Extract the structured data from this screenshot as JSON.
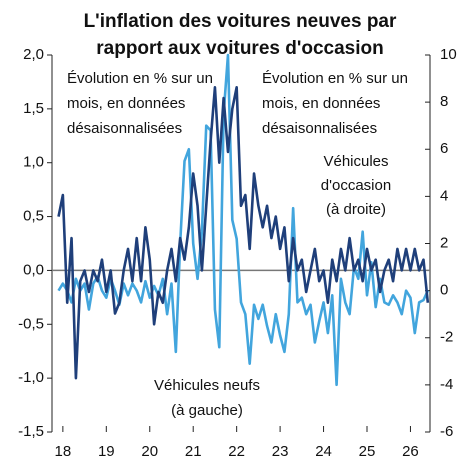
{
  "chart_data": {
    "type": "line",
    "title": [
      "L'inflation des voitures neuves par",
      "rapport aux voitures d'occasion"
    ],
    "annotations": [
      {
        "lines": [
          "Évolution en % sur un",
          "mois, en données",
          "désaisonnalisées"
        ]
      },
      {
        "lines": [
          "Évolution en % sur un",
          "mois, en données",
          "désaisonnalisées"
        ]
      },
      {
        "lines": [
          "Véhicules",
          "d'occasion",
          "(à droite)"
        ]
      },
      {
        "lines": [
          "Véhicules neufs",
          "(à gauche)"
        ]
      }
    ],
    "x": [
      17.9,
      18.0,
      18.1,
      18.2,
      18.3,
      18.4,
      18.5,
      18.6,
      18.7,
      18.8,
      18.9,
      19.0,
      19.1,
      19.2,
      19.3,
      19.4,
      19.5,
      19.6,
      19.7,
      19.8,
      19.9,
      20.0,
      20.1,
      20.2,
      20.3,
      20.4,
      20.5,
      20.6,
      20.7,
      20.8,
      20.9,
      21.0,
      21.1,
      21.2,
      21.3,
      21.4,
      21.5,
      21.6,
      21.7,
      21.8,
      21.9,
      22.0,
      22.1,
      22.2,
      22.3,
      22.4,
      22.5,
      22.6,
      22.7,
      22.8,
      22.9,
      23.0,
      23.1,
      23.2,
      23.3,
      23.4,
      23.5,
      23.6,
      23.7,
      23.8,
      23.9,
      24.0,
      24.1,
      24.2,
      24.3,
      24.4,
      24.5,
      24.6,
      24.7,
      24.8,
      24.9,
      25.0,
      25.1,
      25.2,
      25.3,
      25.4,
      25.5,
      25.6,
      25.7,
      25.8,
      25.9,
      26.0,
      26.1,
      26.2,
      26.3,
      26.4
    ],
    "series": [
      {
        "name": "Véhicules neufs",
        "color": "#1f3f7a",
        "axis": "y",
        "values": [
          0.5,
          0.7,
          -0.3,
          0.3,
          -1.0,
          -0.1,
          0.0,
          -0.2,
          0.0,
          -0.1,
          0.1,
          -0.2,
          0.0,
          -0.4,
          -0.3,
          0.0,
          0.2,
          -0.1,
          0.3,
          -0.1,
          0.4,
          0.1,
          -0.5,
          -0.2,
          -0.3,
          0.0,
          0.2,
          -0.1,
          0.3,
          0.1,
          0.4,
          0.9,
          0.6,
          0.0,
          0.6,
          1.2,
          1.7,
          1.0,
          1.6,
          1.1,
          1.5,
          1.7,
          0.6,
          0.7,
          0.2,
          0.9,
          0.6,
          0.4,
          0.6,
          0.3,
          0.5,
          0.2,
          0.4,
          -0.1,
          0.3,
          0.0,
          0.1,
          -0.2,
          0.0,
          0.2,
          -0.1,
          0.0,
          -0.3,
          0.1,
          -0.1,
          0.2,
          0.0,
          0.3,
          0.0,
          0.1,
          -0.1,
          0.2,
          0.0,
          0.1,
          -0.2,
          0.0,
          0.1,
          -0.1,
          0.2,
          0.0,
          0.2,
          0.0,
          0.2,
          0.0,
          0.1,
          -0.3
        ]
      },
      {
        "name": "Véhicules d'occasion",
        "color": "#42a5dd",
        "axis": "y2",
        "values": [
          0.0,
          0.3,
          0.0,
          -0.5,
          0.5,
          0.0,
          0.3,
          -0.8,
          0.3,
          0.6,
          0.0,
          -0.3,
          0.5,
          0.0,
          -0.6,
          0.3,
          -0.2,
          0.3,
          0.0,
          -0.5,
          0.4,
          -0.3,
          0.2,
          -0.2,
          0.5,
          -1.0,
          0.3,
          -2.6,
          2.0,
          5.5,
          6.0,
          2.0,
          0.5,
          2.5,
          7.0,
          6.8,
          -0.8,
          -2.4,
          7.5,
          10.0,
          3.0,
          2.2,
          -0.5,
          -1.0,
          -3.1,
          -0.6,
          -1.2,
          -0.6,
          -1.5,
          -2.2,
          -1.0,
          -1.9,
          -2.6,
          -1.0,
          3.5,
          -0.5,
          -0.3,
          -1.0,
          -0.6,
          -2.2,
          -1.3,
          -0.5,
          -1.8,
          -0.2,
          -4.0,
          0.5,
          -0.5,
          -1.0,
          1.0,
          0.5,
          2.5,
          -0.2,
          1.2,
          -0.7,
          0.5,
          -0.5,
          -0.6,
          -0.2,
          -0.5,
          -1.0,
          0.0,
          -0.3,
          -1.8,
          -0.5,
          -0.4,
          0.0
        ]
      }
    ],
    "xlim": [
      17.75,
      26.45
    ],
    "xticks": [
      18,
      19,
      20,
      21,
      22,
      23,
      24,
      25,
      26
    ],
    "ylim": [
      -1.5,
      2.0
    ],
    "yticks": [
      {
        "value": -1.5,
        "label": "-1,5"
      },
      {
        "value": -1.0,
        "label": "-1,0"
      },
      {
        "value": -0.5,
        "label": "-0,5"
      },
      {
        "value": 0.0,
        "label": "0,0"
      },
      {
        "value": 0.5,
        "label": "0,5"
      },
      {
        "value": 1.0,
        "label": "1,0"
      },
      {
        "value": 1.5,
        "label": "1,5"
      },
      {
        "value": 2.0,
        "label": "2,0"
      }
    ],
    "y2lim": [
      -6,
      10
    ],
    "y2ticks": [
      -6,
      -4,
      -2,
      0,
      2,
      4,
      6,
      8,
      10
    ]
  }
}
